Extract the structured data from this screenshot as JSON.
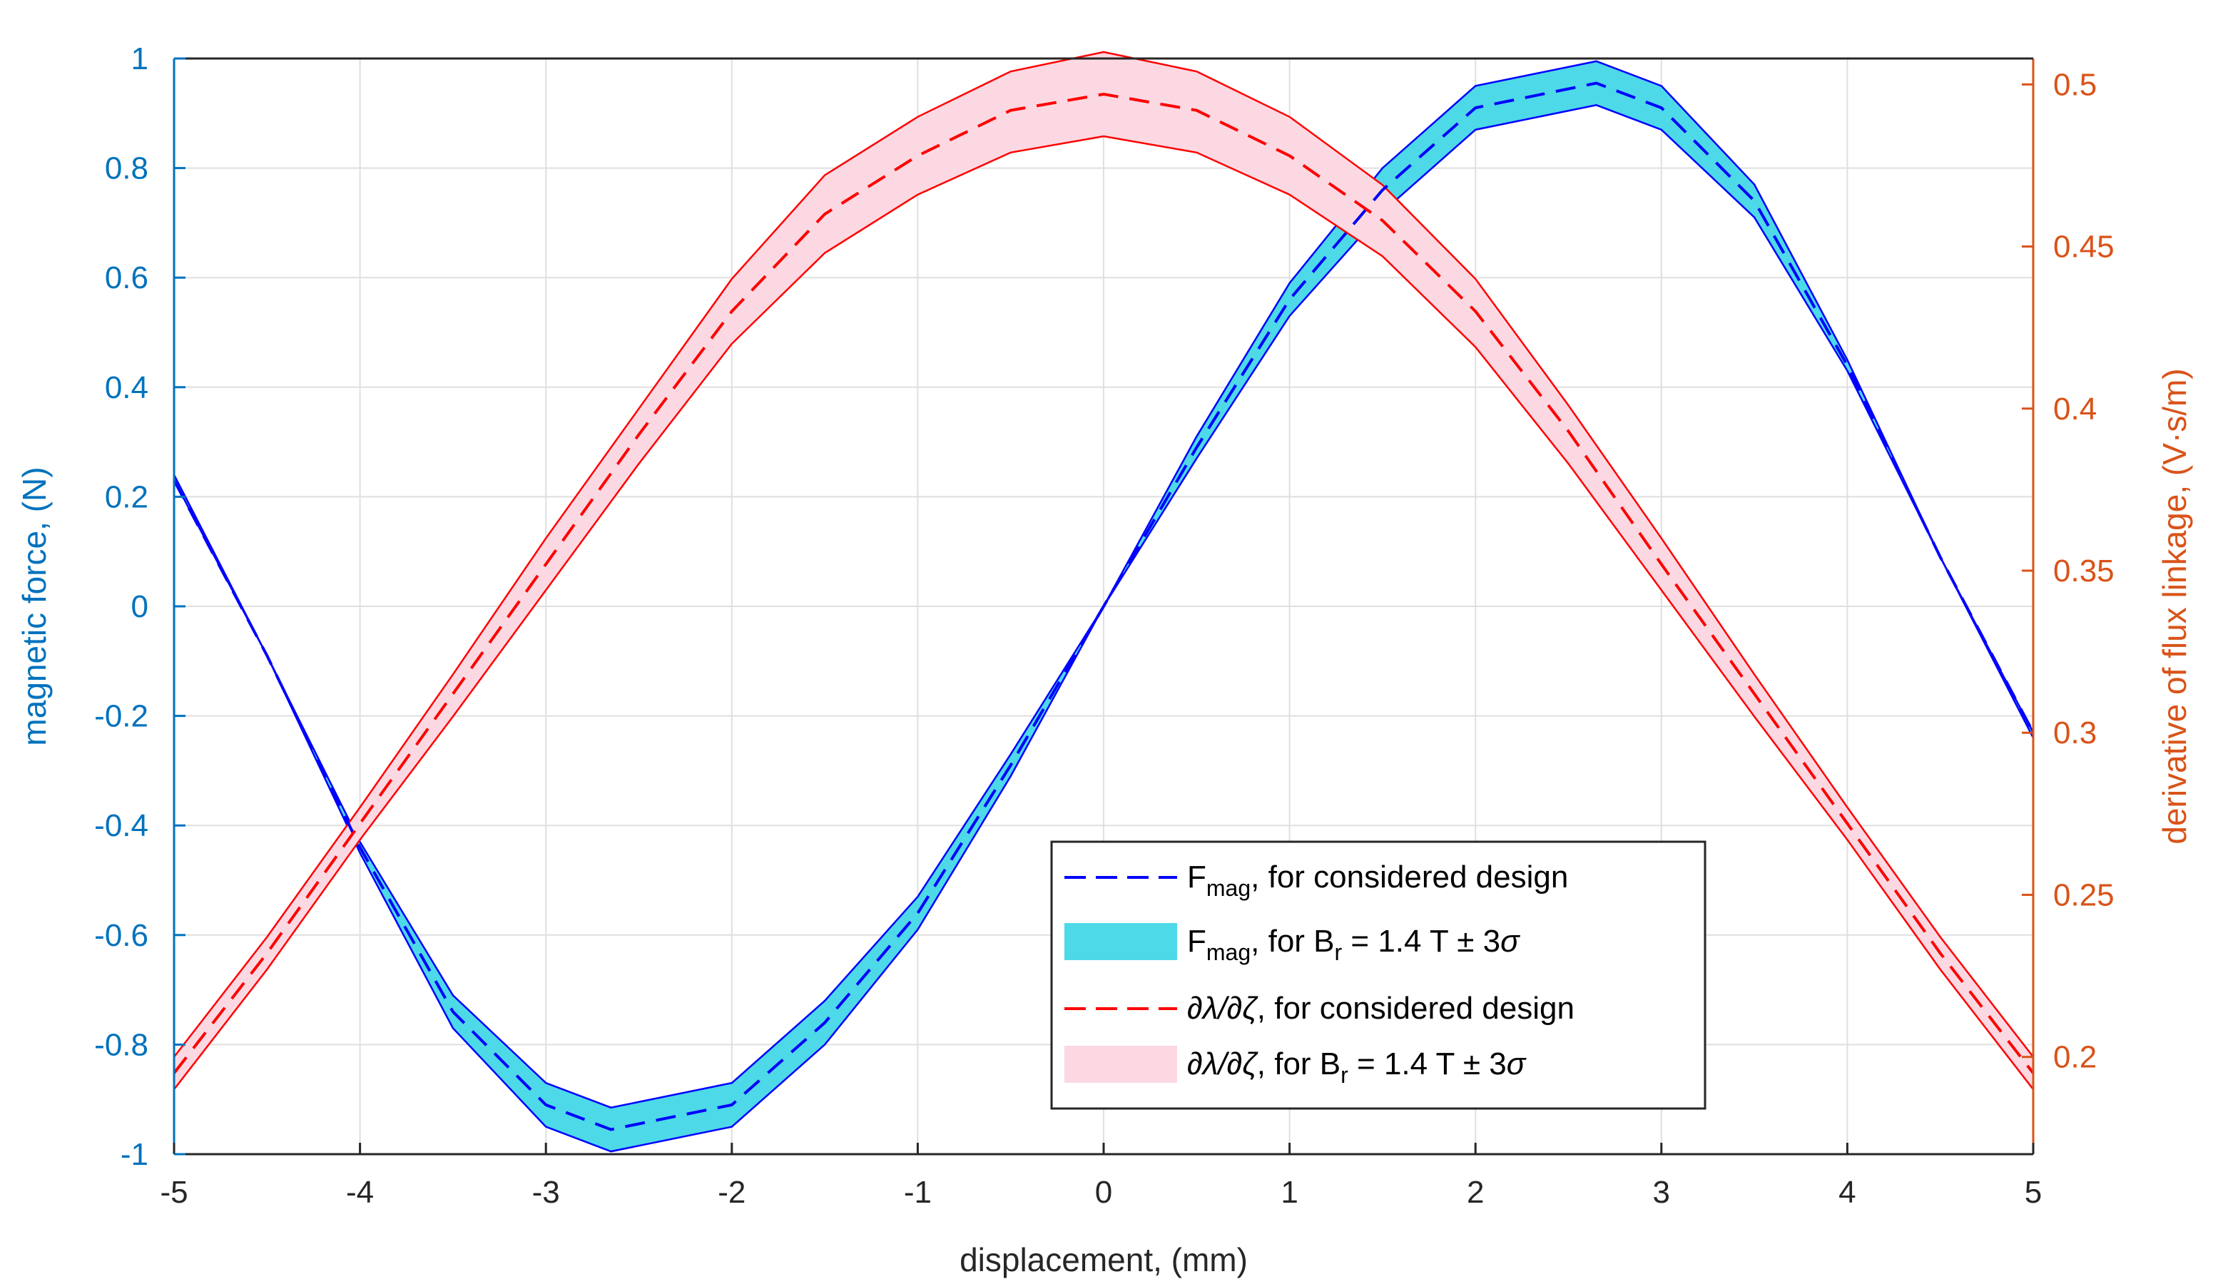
{
  "chart_data": {
    "type": "line",
    "xlabel": "displacement, (mm)",
    "ylabel_left": "magnetic force, (N)",
    "ylabel_right": "derivative of flux linkage, (V·s/m)",
    "xlim": [
      -5,
      5
    ],
    "ylim_left": [
      -1,
      1
    ],
    "ylim_right": [
      0.17,
      0.508
    ],
    "grid": true,
    "x_ticks": [
      -5,
      -4,
      -3,
      -2,
      -1,
      0,
      1,
      2,
      3,
      4,
      5
    ],
    "y_left_ticks": [
      -1,
      -0.8,
      -0.6,
      -0.4,
      -0.2,
      0,
      0.2,
      0.4,
      0.6,
      0.8,
      1
    ],
    "y_right_ticks": [
      0.2,
      0.25,
      0.3,
      0.35,
      0.4,
      0.45,
      0.5
    ],
    "colors": {
      "left_axis": "#0072BD",
      "right_axis": "#D95319",
      "force_line": "#0000FF",
      "force_band": "#4DD9E8",
      "flux_line": "#FF0000",
      "flux_band": "#FCD9E2",
      "grid": "#DFDFDF"
    },
    "series": [
      {
        "name": "F_mag, for considered design",
        "axis": "left",
        "style": "dashed",
        "x": [
          -5,
          -4.5,
          -4,
          -3.5,
          -3,
          -2.65,
          -2,
          -1.5,
          -1,
          -0.5,
          0,
          0.5,
          1,
          1.5,
          2,
          2.65,
          3,
          3.5,
          4,
          4.5,
          5
        ],
        "y": [
          0.23,
          -0.09,
          -0.44,
          -0.74,
          -0.91,
          -0.955,
          -0.91,
          -0.76,
          -0.56,
          -0.29,
          0,
          0.29,
          0.56,
          0.76,
          0.91,
          0.955,
          0.91,
          0.74,
          0.44,
          0.09,
          -0.23
        ]
      },
      {
        "name": "F_mag, for B_r = 1.4 T ± 3σ",
        "axis": "left",
        "style": "band",
        "x": [
          -5,
          -4.5,
          -4,
          -3.5,
          -3,
          -2.65,
          -2,
          -1.5,
          -1,
          -0.5,
          0,
          0.5,
          1,
          1.5,
          2,
          2.65,
          3,
          3.5,
          4,
          4.5,
          5
        ],
        "lower": [
          0.23,
          -0.09,
          -0.45,
          -0.77,
          -0.95,
          -0.995,
          -0.95,
          -0.8,
          -0.59,
          -0.31,
          0,
          0.27,
          0.53,
          0.72,
          0.87,
          0.915,
          0.87,
          0.71,
          0.43,
          0.09,
          -0.24
        ],
        "upper": [
          0.24,
          -0.09,
          -0.43,
          -0.71,
          -0.87,
          -0.915,
          -0.87,
          -0.72,
          -0.53,
          -0.27,
          0,
          0.31,
          0.59,
          0.8,
          0.95,
          0.995,
          0.95,
          0.77,
          0.45,
          0.09,
          -0.23
        ]
      },
      {
        "name": "∂λ/∂ζ, for considered design",
        "axis": "right",
        "style": "dashed",
        "x": [
          -5,
          -4.5,
          -4,
          -3.5,
          -3,
          -2.5,
          -2,
          -1.5,
          -1,
          -0.5,
          0,
          0.5,
          1,
          1.5,
          2,
          2.5,
          3,
          3.5,
          4,
          4.5,
          5
        ],
        "y": [
          0.195,
          0.232,
          0.272,
          0.312,
          0.352,
          0.392,
          0.43,
          0.46,
          0.478,
          0.492,
          0.497,
          0.492,
          0.478,
          0.458,
          0.43,
          0.393,
          0.352,
          0.312,
          0.272,
          0.232,
          0.195
        ]
      },
      {
        "name": "∂λ/∂ζ, for B_r = 1.4 T ± 3σ",
        "axis": "right",
        "style": "band",
        "x": [
          -5,
          -4.5,
          -4,
          -3.5,
          -3,
          -2.5,
          -2,
          -1.5,
          -1,
          -0.5,
          0,
          0.5,
          1,
          1.5,
          2,
          2.5,
          3,
          3.5,
          4,
          4.5,
          5
        ],
        "lower": [
          0.19,
          0.227,
          0.267,
          0.305,
          0.344,
          0.383,
          0.42,
          0.448,
          0.466,
          0.479,
          0.484,
          0.479,
          0.466,
          0.447,
          0.419,
          0.383,
          0.344,
          0.305,
          0.267,
          0.227,
          0.19
        ],
        "upper": [
          0.2,
          0.237,
          0.277,
          0.318,
          0.36,
          0.4,
          0.44,
          0.472,
          0.49,
          0.504,
          0.51,
          0.504,
          0.49,
          0.469,
          0.44,
          0.401,
          0.36,
          0.318,
          0.277,
          0.237,
          0.2
        ]
      }
    ],
    "legend": {
      "position": "lower-right",
      "entries": [
        {
          "base": "F",
          "sub": "mag",
          "text": ", for considered design"
        },
        {
          "base": "F",
          "sub": "mag",
          "text": ", for B",
          "sub2": "r",
          "tail": " = 1.4 T ± 3",
          "sym": "σ"
        },
        {
          "italic": "∂λ/∂ζ",
          "text": ", for considered design"
        },
        {
          "italic": "∂λ/∂ζ",
          "text": ", for B",
          "sub2": "r",
          "tail": " = 1.4 T ± 3",
          "sym": "σ"
        }
      ]
    }
  }
}
